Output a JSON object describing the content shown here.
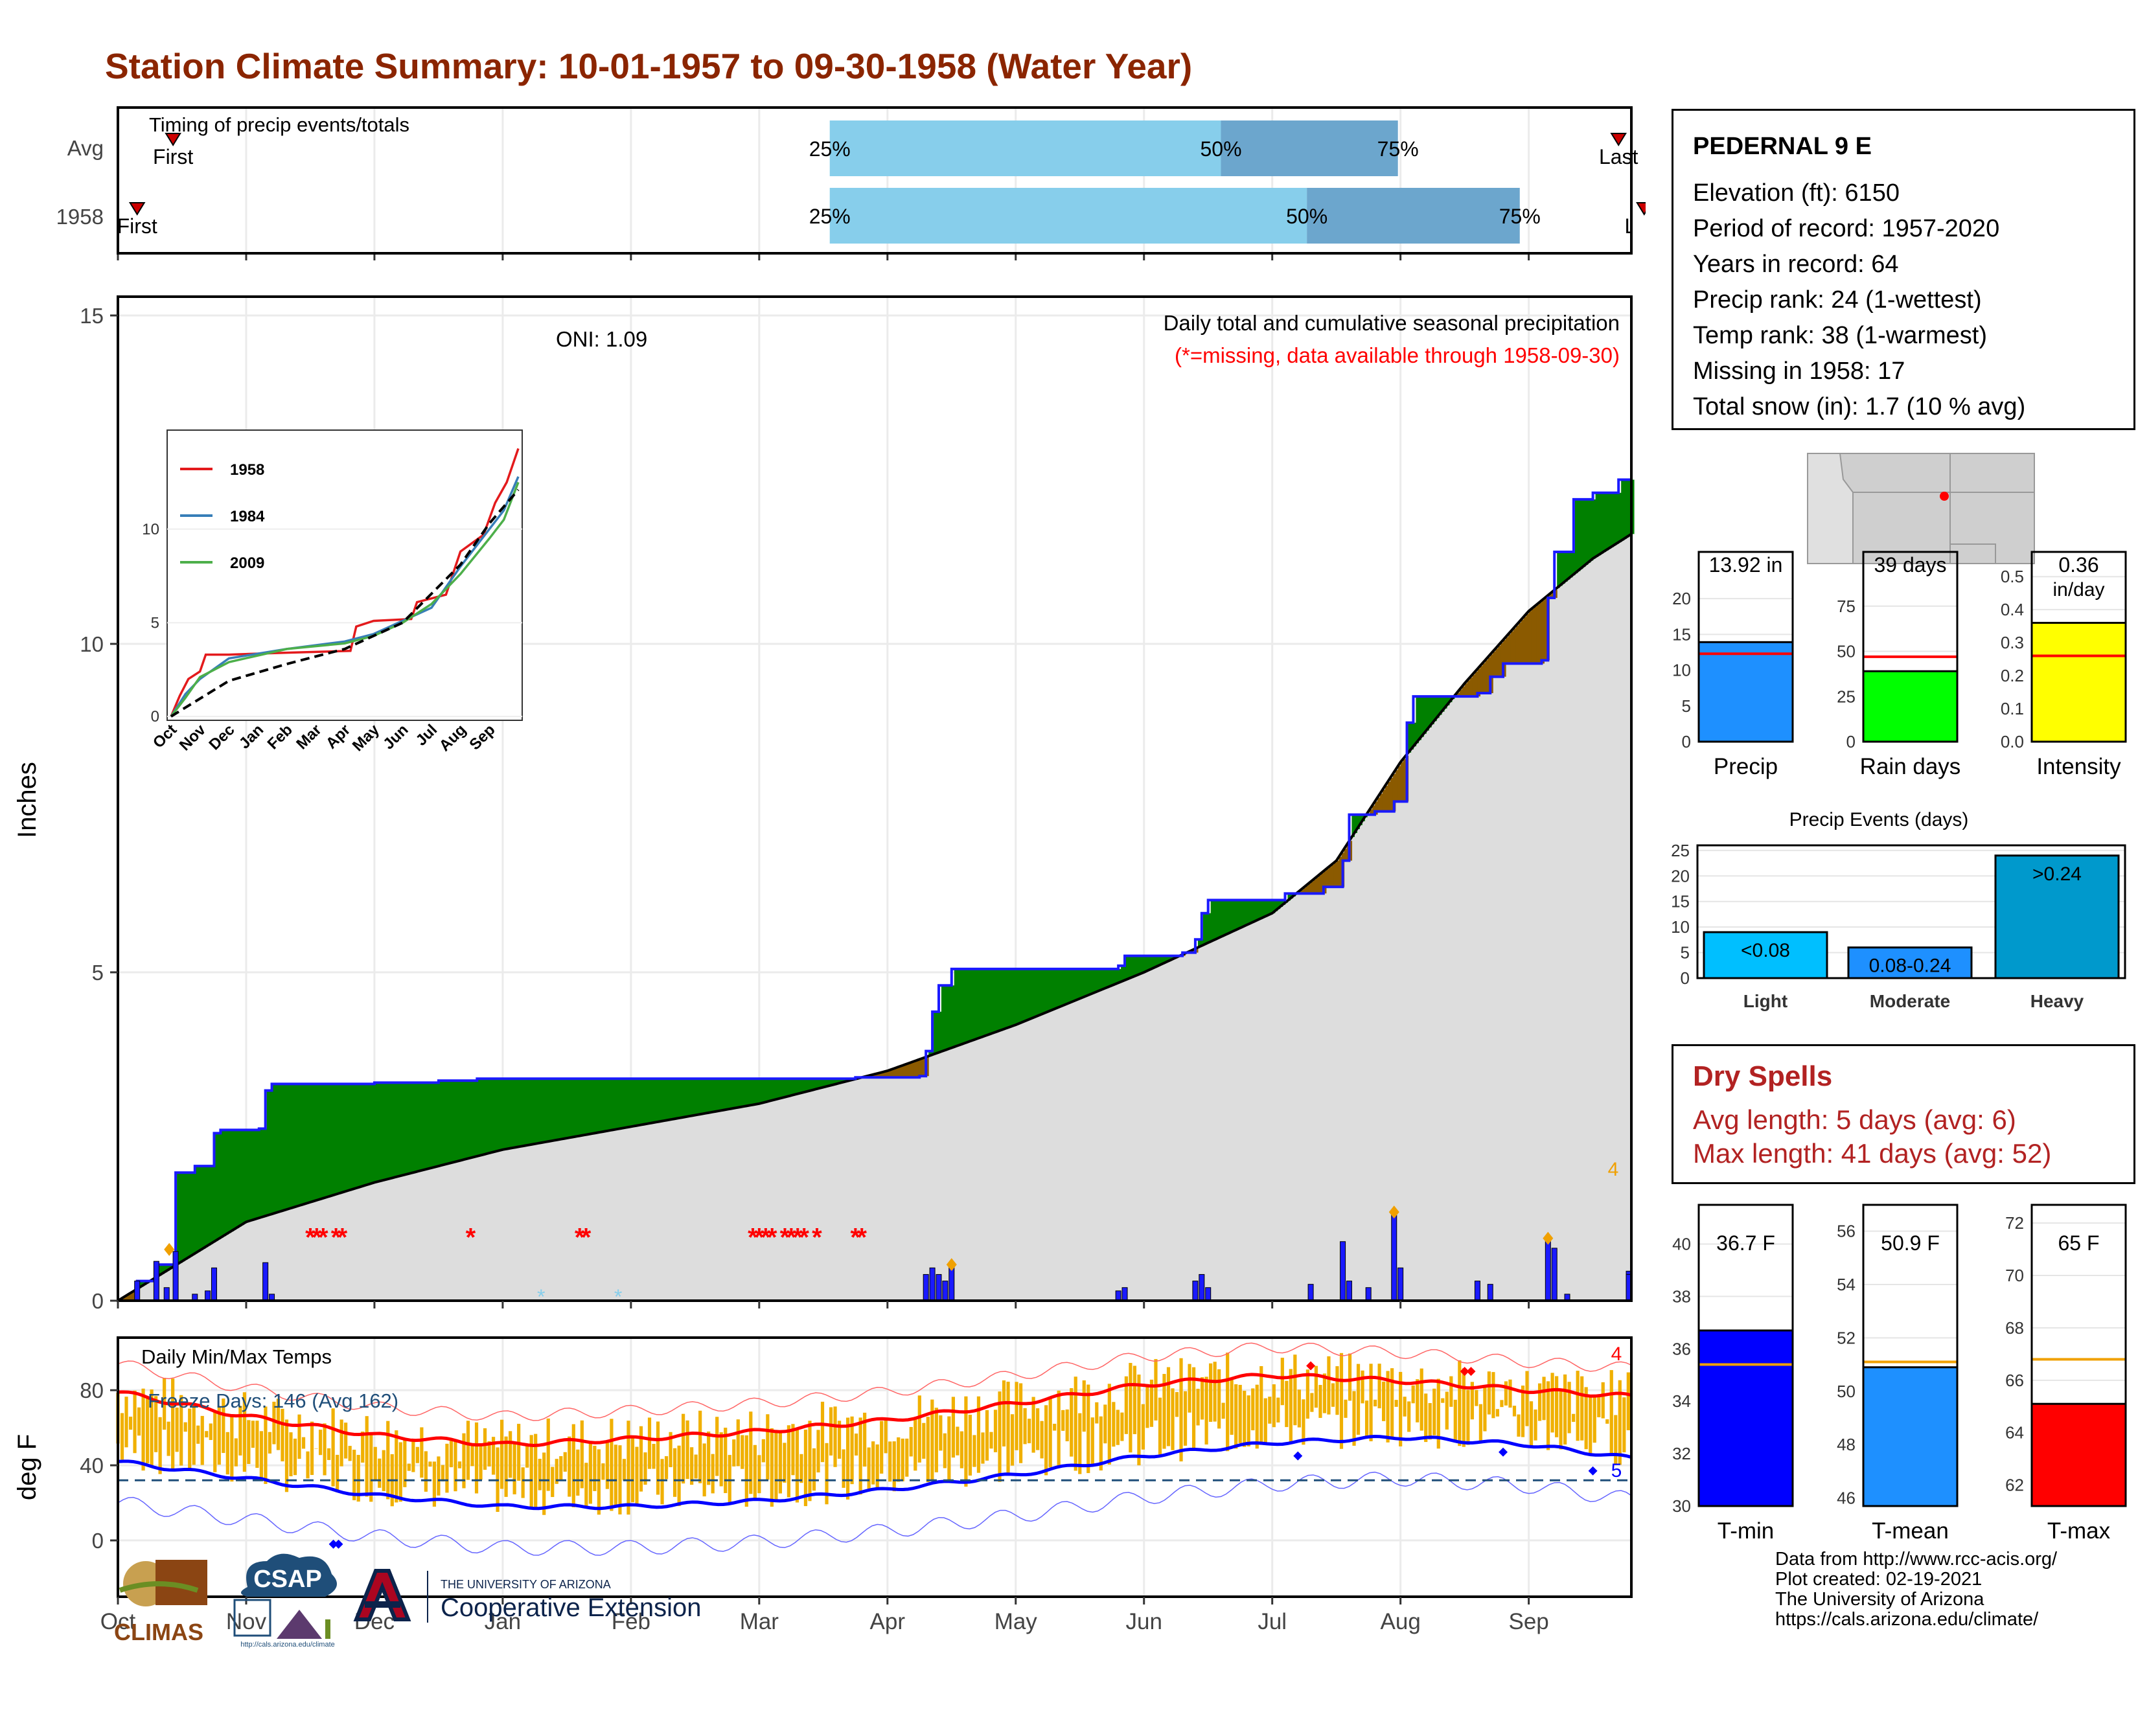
{
  "title": "Station Climate Summary: 10-01-1957 to 09-30-1958 (Water Year)",
  "timing_panel": {
    "label": "Timing of precip events/totals",
    "rows": [
      {
        "label": "Avg",
        "first_label": "First",
        "last_label": "Last",
        "first": 0.43,
        "last": 11.7,
        "p25": 5.55,
        "p50": 8.6,
        "p75": 9.98,
        "labels": [
          "25%",
          "50%",
          "75%"
        ]
      },
      {
        "label": "1958",
        "first_label": "First",
        "last_label": "Last",
        "first": 0.15,
        "last": 11.9,
        "p25": 5.55,
        "p50": 9.27,
        "p75": 10.93,
        "labels": [
          "25%",
          "50%",
          "75%"
        ]
      }
    ]
  },
  "month_labels": [
    "Oct",
    "Nov",
    "Dec",
    "Jan",
    "Feb",
    "Mar",
    "Apr",
    "May",
    "Jun",
    "Jul",
    "Aug",
    "Sep"
  ],
  "precip_panel": {
    "ylabel": "Inches",
    "yticks": [
      0,
      5,
      10,
      15
    ],
    "note1": "Daily total and cumulative seasonal precipitation",
    "note2": "(*=missing, data available through 1958-09-30)",
    "oni": "ONI: 1.09",
    "snow_count_label": "4",
    "colors": {
      "above": "#008000",
      "below": "#8B5A00",
      "avg": "#dddddd",
      "daily": "#1a1aff",
      "missing": "#ff0000",
      "snow": "#87CEEB"
    }
  },
  "temp_panel": {
    "label": "Daily Min/Max Temps",
    "ylabel": "deg F",
    "yticks": [
      0,
      40,
      80
    ],
    "freeze_label": "Freeze Days: 146 (Avg 162)",
    "max_record_count": "4",
    "min_record_count": "5",
    "colors": {
      "bar": "#F0B000",
      "avg_max": "#ff0000",
      "avg_min": "#0000ff",
      "freeze": "#1F4E79"
    }
  },
  "inset": {
    "legend": [
      "1958",
      "1984",
      "2009"
    ],
    "legend_colors": [
      "#e31a1c",
      "#377eb8",
      "#4daf4a"
    ],
    "yticks": [
      0,
      5,
      10
    ],
    "month_labels": [
      "Oct",
      "Nov",
      "Dec",
      "Jan",
      "Feb",
      "Mar",
      "Apr",
      "May",
      "Jun",
      "Jul",
      "Aug",
      "Sep"
    ]
  },
  "station": {
    "name": "PEDERNAL 9 E",
    "lines": [
      "Elevation (ft): 6150",
      "Period of record: 1957-2020",
      "Years in record: 64",
      "Precip rank: 24 (1-wettest)",
      "Temp rank: 38 (1-warmest)",
      "Missing in 1958: 17",
      "Total snow (in): 1.7 (10 % avg)"
    ]
  },
  "summary_bars": [
    {
      "label": "Precip",
      "value_label": "13.92 in",
      "value": 13.92,
      "avg": 12.3,
      "ymax": 24,
      "ticks": [
        0,
        5,
        10,
        15,
        20
      ],
      "color": "#1E90FF"
    },
    {
      "label": "Rain days",
      "value_label": "39 days",
      "value": 39,
      "avg": 47,
      "ymax": 95,
      "ticks": [
        0,
        25,
        50,
        75
      ],
      "color": "#00ff00"
    },
    {
      "label": "Intensity",
      "value_label": "0.36",
      "value_label2": "in/day",
      "value": 0.36,
      "avg": 0.26,
      "ymax": 0.52,
      "ticks": [
        "0.0",
        "0.1",
        "0.2",
        "0.3",
        "0.4",
        "0.5"
      ],
      "color": "#ffff00"
    }
  ],
  "events": {
    "title": "Precip Events (days)",
    "ticks": [
      0,
      5,
      10,
      15,
      20,
      25
    ],
    "categories": [
      "Light",
      "Moderate",
      "Heavy"
    ],
    "bar_labels": [
      "<0.08",
      "0.08-0.24",
      ">0.24"
    ],
    "values": [
      9,
      6,
      24
    ],
    "colors": [
      "#00BFFF",
      "#1E90FF",
      "#0099CC"
    ]
  },
  "dry_spells": {
    "title": "Dry Spells",
    "avg": "Avg length: 5 days (avg: 6)",
    "max": "Max length: 41 days (avg: 52)"
  },
  "temp_bars": [
    {
      "label": "T-min",
      "value_label": "36.7 F",
      "value": 36.7,
      "avg": 35.4,
      "ymin": 30,
      "ymax": 41,
      "ticks": [
        30,
        32,
        34,
        36,
        38,
        40
      ],
      "color": "#0000ff"
    },
    {
      "label": "T-mean",
      "value_label": "50.9 F",
      "value": 50.9,
      "avg": 51.1,
      "ymin": 45.7,
      "ymax": 56.5,
      "ticks": [
        46,
        48,
        50,
        52,
        54,
        56
      ],
      "color": "#1E90FF"
    },
    {
      "label": "T-max",
      "value_label": "65 F",
      "value": 65.1,
      "avg": 66.8,
      "ymin": 61.2,
      "ymax": 72.2,
      "ticks": [
        62,
        64,
        66,
        68,
        70,
        72
      ],
      "color": "#ff0000"
    }
  ],
  "footer": [
    "Data from http://www.rcc-acis.org/",
    "Plot created: 02-19-2021",
    "The University of Arizona",
    "https://cals.arizona.edu/climate/"
  ],
  "logos": {
    "climas": "CLIMAS",
    "csap": "CSAP",
    "csap_url": "http://cals.arizona.edu/climate",
    "ua_line1": "THE UNIVERSITY OF ARIZONA",
    "ua_line2": "Cooperative Extension"
  },
  "chart_data": [
    {
      "type": "area",
      "title": "Daily total and cumulative seasonal precipitation",
      "ylabel": "Inches",
      "xlabel": "",
      "ylim": [
        0,
        15.2
      ],
      "x_unit": "months since Oct 1 1957",
      "cumulative_1958": [
        [
          0,
          0
        ],
        [
          0.15,
          0.3
        ],
        [
          0.3,
          0.55
        ],
        [
          0.45,
          1.2
        ],
        [
          0.45,
          1.95
        ],
        [
          0.6,
          2.05
        ],
        [
          0.75,
          2.55
        ],
        [
          0.8,
          2.6
        ],
        [
          1.1,
          2.62
        ],
        [
          1.15,
          3.2
        ],
        [
          1.2,
          3.3
        ],
        [
          2.0,
          3.32
        ],
        [
          2.5,
          3.35
        ],
        [
          2.8,
          3.38
        ],
        [
          4.0,
          3.38
        ],
        [
          5.0,
          3.38
        ],
        [
          5.75,
          3.4
        ],
        [
          6.25,
          3.42
        ],
        [
          6.3,
          3.8
        ],
        [
          6.35,
          4.4
        ],
        [
          6.4,
          4.8
        ],
        [
          6.5,
          5.05
        ],
        [
          6.6,
          5.05
        ],
        [
          7.0,
          5.05
        ],
        [
          7.75,
          5.05
        ],
        [
          7.8,
          5.1
        ],
        [
          7.85,
          5.25
        ],
        [
          8.3,
          5.3
        ],
        [
          8.4,
          5.5
        ],
        [
          8.45,
          5.9
        ],
        [
          8.5,
          6.1
        ],
        [
          9.0,
          6.1
        ],
        [
          9.1,
          6.2
        ],
        [
          9.4,
          6.3
        ],
        [
          9.5,
          6.3
        ],
        [
          9.55,
          6.7
        ],
        [
          9.6,
          7.4
        ],
        [
          9.8,
          7.45
        ],
        [
          9.95,
          7.6
        ],
        [
          10.05,
          8.8
        ],
        [
          10.1,
          9.2
        ],
        [
          10.6,
          9.25
        ],
        [
          10.7,
          9.5
        ],
        [
          10.8,
          9.7
        ],
        [
          11.1,
          9.75
        ],
        [
          11.15,
          10.7
        ],
        [
          11.2,
          11.4
        ],
        [
          11.35,
          12.2
        ],
        [
          11.5,
          12.3
        ],
        [
          11.7,
          12.5
        ],
        [
          11.85,
          12.6
        ],
        [
          11.9,
          13.0
        ],
        [
          11.95,
          13.6
        ],
        [
          11.98,
          13.92
        ],
        [
          12,
          13.92
        ]
      ],
      "cumulative_avg": [
        [
          0,
          0
        ],
        [
          1,
          1.2
        ],
        [
          2,
          1.8
        ],
        [
          3,
          2.3
        ],
        [
          4,
          2.65
        ],
        [
          5,
          3.0
        ],
        [
          6,
          3.5
        ],
        [
          7,
          4.2
        ],
        [
          8,
          5.0
        ],
        [
          9,
          5.9
        ],
        [
          9.5,
          6.7
        ],
        [
          10,
          8.2
        ],
        [
          10.5,
          9.4
        ],
        [
          11,
          10.5
        ],
        [
          11.5,
          11.3
        ],
        [
          12,
          11.92
        ]
      ],
      "daily_precip_1958": [
        [
          0.15,
          0.3
        ],
        [
          0.3,
          0.6
        ],
        [
          0.38,
          0.2
        ],
        [
          0.45,
          0.75
        ],
        [
          0.6,
          0.1
        ],
        [
          0.7,
          0.15
        ],
        [
          0.75,
          0.5
        ],
        [
          1.15,
          0.58
        ],
        [
          1.2,
          0.1
        ],
        [
          6.3,
          0.4
        ],
        [
          6.35,
          0.5
        ],
        [
          6.4,
          0.4
        ],
        [
          6.45,
          0.3
        ],
        [
          6.5,
          0.55
        ],
        [
          7.8,
          0.15
        ],
        [
          7.85,
          0.2
        ],
        [
          8.4,
          0.3
        ],
        [
          8.45,
          0.4
        ],
        [
          8.5,
          0.2
        ],
        [
          9.3,
          0.25
        ],
        [
          9.55,
          0.9
        ],
        [
          9.6,
          0.3
        ],
        [
          9.75,
          0.2
        ],
        [
          9.95,
          1.35
        ],
        [
          10.0,
          0.5
        ],
        [
          10.6,
          0.3
        ],
        [
          10.7,
          0.25
        ],
        [
          11.15,
          0.9
        ],
        [
          11.2,
          0.8
        ],
        [
          11.3,
          0.1
        ],
        [
          11.85,
          0.3
        ],
        [
          11.9,
          0.45
        ],
        [
          11.95,
          0.4
        ],
        [
          12.0,
          0.4
        ]
      ],
      "missing_days_x": [
        1.5,
        1.55,
        1.6,
        1.7,
        1.75,
        2.75,
        3.6,
        3.65,
        4.95,
        5.0,
        5.05,
        5.1,
        5.2,
        5.25,
        5.3,
        5.35,
        5.45,
        5.75,
        5.8
      ]
    },
    {
      "type": "line",
      "title": "",
      "series": [
        {
          "name": "1958",
          "color": "#e31a1c",
          "values": [
            [
              0,
              0
            ],
            [
              0.3,
              1.1
            ],
            [
              0.6,
              2.0
            ],
            [
              1,
              2.4
            ],
            [
              1.2,
              3.3
            ],
            [
              2,
              3.3
            ],
            [
              4,
              3.4
            ],
            [
              6.2,
              3.5
            ],
            [
              6.4,
              4.8
            ],
            [
              7,
              5.1
            ],
            [
              8.3,
              5.2
            ],
            [
              8.5,
              6.1
            ],
            [
              9.5,
              6.5
            ],
            [
              10,
              8.8
            ],
            [
              10.8,
              9.7
            ],
            [
              11.2,
              11.4
            ],
            [
              11.6,
              12.5
            ],
            [
              12,
              14.3
            ]
          ]
        },
        {
          "name": "1984",
          "color": "#377eb8",
          "values": [
            [
              0,
              0
            ],
            [
              0.5,
              1.2
            ],
            [
              1,
              2.0
            ],
            [
              2,
              3.1
            ],
            [
              4,
              3.6
            ],
            [
              6,
              4.0
            ],
            [
              7,
              4.4
            ],
            [
              8,
              5.1
            ],
            [
              9,
              5.8
            ],
            [
              10,
              8.0
            ],
            [
              11,
              10.0
            ],
            [
              11.5,
              11.0
            ],
            [
              12,
              12.8
            ]
          ]
        },
        {
          "name": "2009",
          "color": "#4daf4a",
          "values": [
            [
              0,
              0
            ],
            [
              0.5,
              1.0
            ],
            [
              1,
              2.1
            ],
            [
              2,
              2.9
            ],
            [
              4,
              3.6
            ],
            [
              6,
              3.9
            ],
            [
              7,
              4.3
            ],
            [
              8,
              5.0
            ],
            [
              9,
              6.0
            ],
            [
              10,
              7.6
            ],
            [
              11,
              9.5
            ],
            [
              11.5,
              10.5
            ],
            [
              12,
              12.5
            ]
          ]
        },
        {
          "name": "",
          "color": "#000000",
          "values": [
            [
              0,
              0
            ],
            [
              2,
              1.9
            ],
            [
              4,
              2.8
            ],
            [
              6,
              3.6
            ],
            [
              8,
              5.0
            ],
            [
              10,
              8.1
            ],
            [
              11,
              10.3
            ],
            [
              12,
              12.1
            ]
          ]
        }
      ],
      "ylim": [
        0,
        14.8
      ]
    },
    {
      "type": "bar",
      "title": "Daily Min/Max Temps",
      "ylabel": "deg F",
      "ylim": [
        -30,
        108
      ],
      "avg_max_monthly": [
        [
          0,
          79
        ],
        [
          1,
          66
        ],
        [
          2,
          56
        ],
        [
          3,
          51
        ],
        [
          4,
          54
        ],
        [
          5,
          58
        ],
        [
          6,
          64
        ],
        [
          7,
          73
        ],
        [
          8,
          83
        ],
        [
          9,
          88
        ],
        [
          10,
          85
        ],
        [
          11,
          80
        ],
        [
          12,
          76
        ]
      ],
      "avg_min_monthly": [
        [
          0,
          42
        ],
        [
          1,
          33
        ],
        [
          2,
          24
        ],
        [
          3,
          18
        ],
        [
          4,
          18
        ],
        [
          5,
          21
        ],
        [
          6,
          27
        ],
        [
          7,
          35
        ],
        [
          8,
          45
        ],
        [
          9,
          52
        ],
        [
          10,
          55
        ],
        [
          11,
          51
        ],
        [
          12,
          42
        ]
      ],
      "freeze_line": 32
    },
    {
      "type": "bar",
      "title": "",
      "categories": [
        "Precip",
        "Rain days",
        "Intensity"
      ],
      "values": [
        13.92,
        39,
        0.36
      ]
    },
    {
      "type": "bar",
      "title": "Precip Events (days)",
      "categories": [
        "Light",
        "Moderate",
        "Heavy"
      ],
      "values": [
        9,
        6,
        24
      ]
    },
    {
      "type": "bar",
      "title": "",
      "categories": [
        "T-min",
        "T-mean",
        "T-max"
      ],
      "values": [
        36.7,
        50.9,
        65.1
      ]
    }
  ]
}
